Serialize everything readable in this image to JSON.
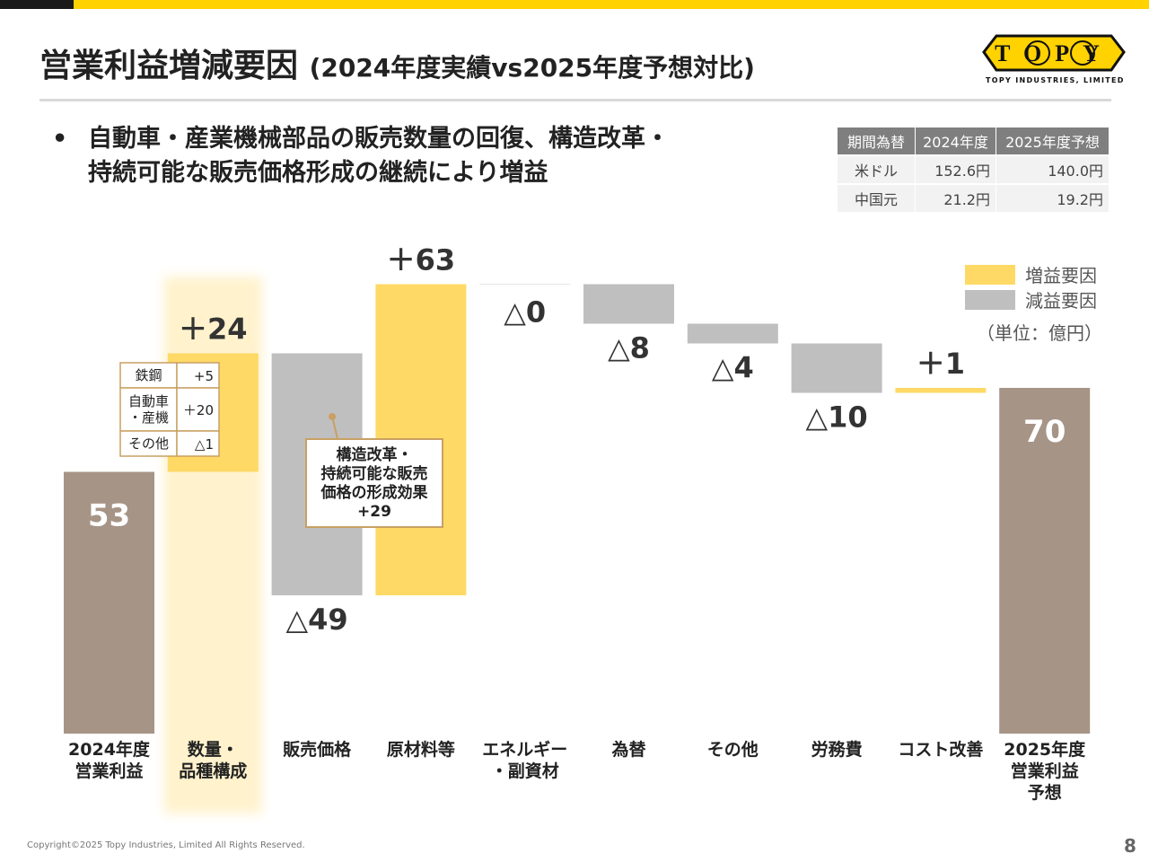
{
  "header": {
    "title_main": "営業利益増減要因",
    "title_sub": "(2024年度実績vs2025年度予想対比)"
  },
  "logo": {
    "text": "TOPY",
    "tagline": "TOPY INDUSTRIES, LIMITED"
  },
  "bullet": {
    "marker": "•",
    "line1": "自動車・産業機械部品の販売数量の回復、構造改革・",
    "line2": "持続可能な販売価格形成の継続により増益"
  },
  "fx_table": {
    "headers": [
      "期間為替",
      "2024年度",
      "2025年度予想"
    ],
    "rows": [
      [
        "米ドル",
        "152.6円",
        "140.0円"
      ],
      [
        "中国元",
        "21.2円",
        "19.2円"
      ]
    ]
  },
  "chart_data": {
    "type": "bar",
    "subtype": "waterfall",
    "unit_label": "（単位：億円）",
    "legend": [
      {
        "name": "増益要因",
        "color": "#FFD966"
      },
      {
        "name": "減益要因",
        "color": "#BFBFBF"
      }
    ],
    "legend_position": "top-right",
    "colors": {
      "increase": "#FFD966",
      "decrease": "#BFBFBF",
      "total": "#A69486",
      "highlight": "#FFF2CC"
    },
    "categories": [
      "2024年度\n営業利益",
      "数量・\n品種構成",
      "販売価格",
      "原材料等",
      "エネルギー\n・副資材",
      "為替",
      "その他",
      "労務費",
      "コスト改善",
      "2025年度\n営業利益\n予想"
    ],
    "values": [
      53,
      24,
      -49,
      63,
      0,
      -8,
      -4,
      -10,
      1,
      70
    ],
    "kinds": [
      "total",
      "increase",
      "decrease",
      "increase",
      "decrease",
      "decrease",
      "decrease",
      "decrease",
      "increase",
      "total"
    ],
    "data_labels": [
      "53",
      "＋24",
      "△49",
      "＋63",
      "△0",
      "△8",
      "△4",
      "△10",
      "＋1",
      "70"
    ],
    "highlighted_category_index": 1,
    "ylim": [
      0,
      140
    ],
    "breakdown_table": {
      "rows": [
        [
          "鉄鋼",
          "+5"
        ],
        [
          "自動車\n・産機",
          "＋20"
        ],
        [
          "その他",
          "△1"
        ]
      ]
    },
    "callout": {
      "text": "構造改革・\n持続可能な販売\n価格の形成効果\n+29",
      "target_category_index": 2
    }
  },
  "footer": {
    "copyright": "Copyright©2025 Topy Industries, Limited All Rights Reserved.",
    "page": "8"
  }
}
